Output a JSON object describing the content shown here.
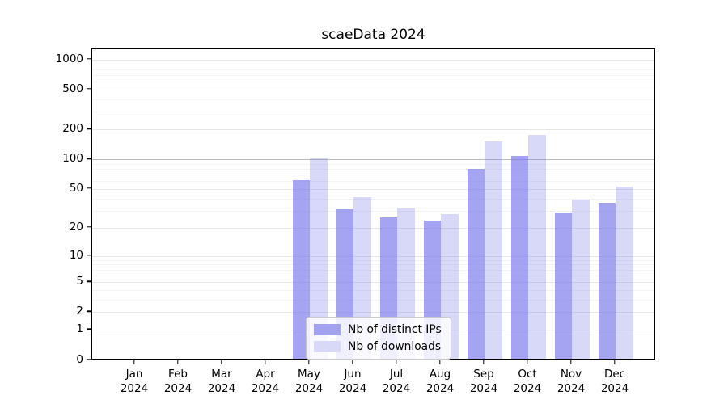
{
  "title": "scaeData 2024",
  "chart_data": {
    "type": "bar",
    "title": "scaeData 2024",
    "categories": [
      "Jan",
      "Feb",
      "Mar",
      "Apr",
      "May",
      "Jun",
      "Jul",
      "Aug",
      "Sep",
      "Oct",
      "Nov",
      "Dec"
    ],
    "year_label": "2024",
    "series": [
      {
        "name": "Nb of distinct IPs",
        "color": "#a2a2ee",
        "fill": "rgba(115,115,235,0.65)",
        "values": [
          0,
          0,
          0,
          0,
          60,
          30,
          25,
          23,
          78,
          105,
          28,
          35
        ]
      },
      {
        "name": "Nb of downloads",
        "color": "#d8d8f7",
        "fill": "rgba(115,115,235,0.28)",
        "values": [
          0,
          0,
          0,
          0,
          100,
          40,
          31,
          27,
          148,
          170,
          38,
          51
        ]
      }
    ],
    "xlabel": "",
    "ylabel": "",
    "yscale": "log1p",
    "ylim": [
      0,
      1270
    ],
    "yticks": [
      0,
      1,
      2,
      5,
      10,
      20,
      50,
      100,
      200,
      500,
      1000
    ],
    "yticks_minor": [
      3,
      4,
      6,
      7,
      8,
      9,
      30,
      40,
      60,
      70,
      80,
      90,
      300,
      400,
      600,
      700,
      800,
      900
    ],
    "emphasized_gridline": 100,
    "grid": "on",
    "legend_position": "inside lower-center"
  }
}
